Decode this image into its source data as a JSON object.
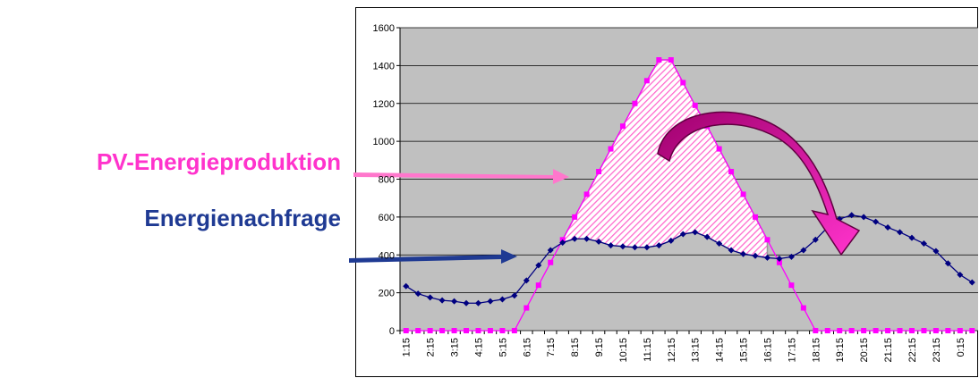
{
  "chart_data": {
    "type": "line",
    "categories": [
      "1:15",
      null,
      "2:15",
      null,
      "3:15",
      null,
      "4:15",
      null,
      "5:15",
      null,
      "6:15",
      null,
      "7:15",
      null,
      "8:15",
      null,
      "9:15",
      null,
      "10:15",
      null,
      "11:15",
      null,
      "12:15",
      null,
      "13:15",
      null,
      "14:15",
      null,
      "15:15",
      null,
      "16:15",
      null,
      "17:15",
      null,
      "18:15",
      null,
      "19:15",
      null,
      "20:15",
      null,
      "21:15",
      null,
      "22:15",
      null,
      "23:15",
      null,
      "0:15",
      null
    ],
    "series": [
      {
        "name": "PV-Energieproduktion",
        "color": "#ff00ff",
        "values": [
          0,
          0,
          0,
          0,
          0,
          0,
          0,
          0,
          0,
          0,
          120,
          240,
          360,
          480,
          600,
          720,
          840,
          960,
          1080,
          1200,
          1320,
          1430,
          1430,
          1310,
          1190,
          1080,
          960,
          840,
          720,
          600,
          480,
          360,
          240,
          120,
          0,
          0,
          0,
          0,
          0,
          0,
          0,
          0,
          0,
          0,
          0,
          0,
          0,
          0
        ]
      },
      {
        "name": "Energienachfrage",
        "color": "#000080",
        "values": [
          235,
          195,
          175,
          160,
          155,
          145,
          145,
          155,
          165,
          185,
          265,
          345,
          425,
          465,
          485,
          485,
          470,
          450,
          445,
          440,
          440,
          450,
          475,
          510,
          520,
          495,
          460,
          425,
          405,
          395,
          385,
          380,
          390,
          425,
          480,
          545,
          590,
          610,
          600,
          575,
          545,
          520,
          490,
          460,
          420,
          355,
          295,
          255
        ]
      }
    ],
    "ylim": [
      0,
      1600
    ],
    "yticks": [
      0,
      200,
      400,
      600,
      800,
      1000,
      1200,
      1400,
      1600
    ],
    "grid": true
  }
}
